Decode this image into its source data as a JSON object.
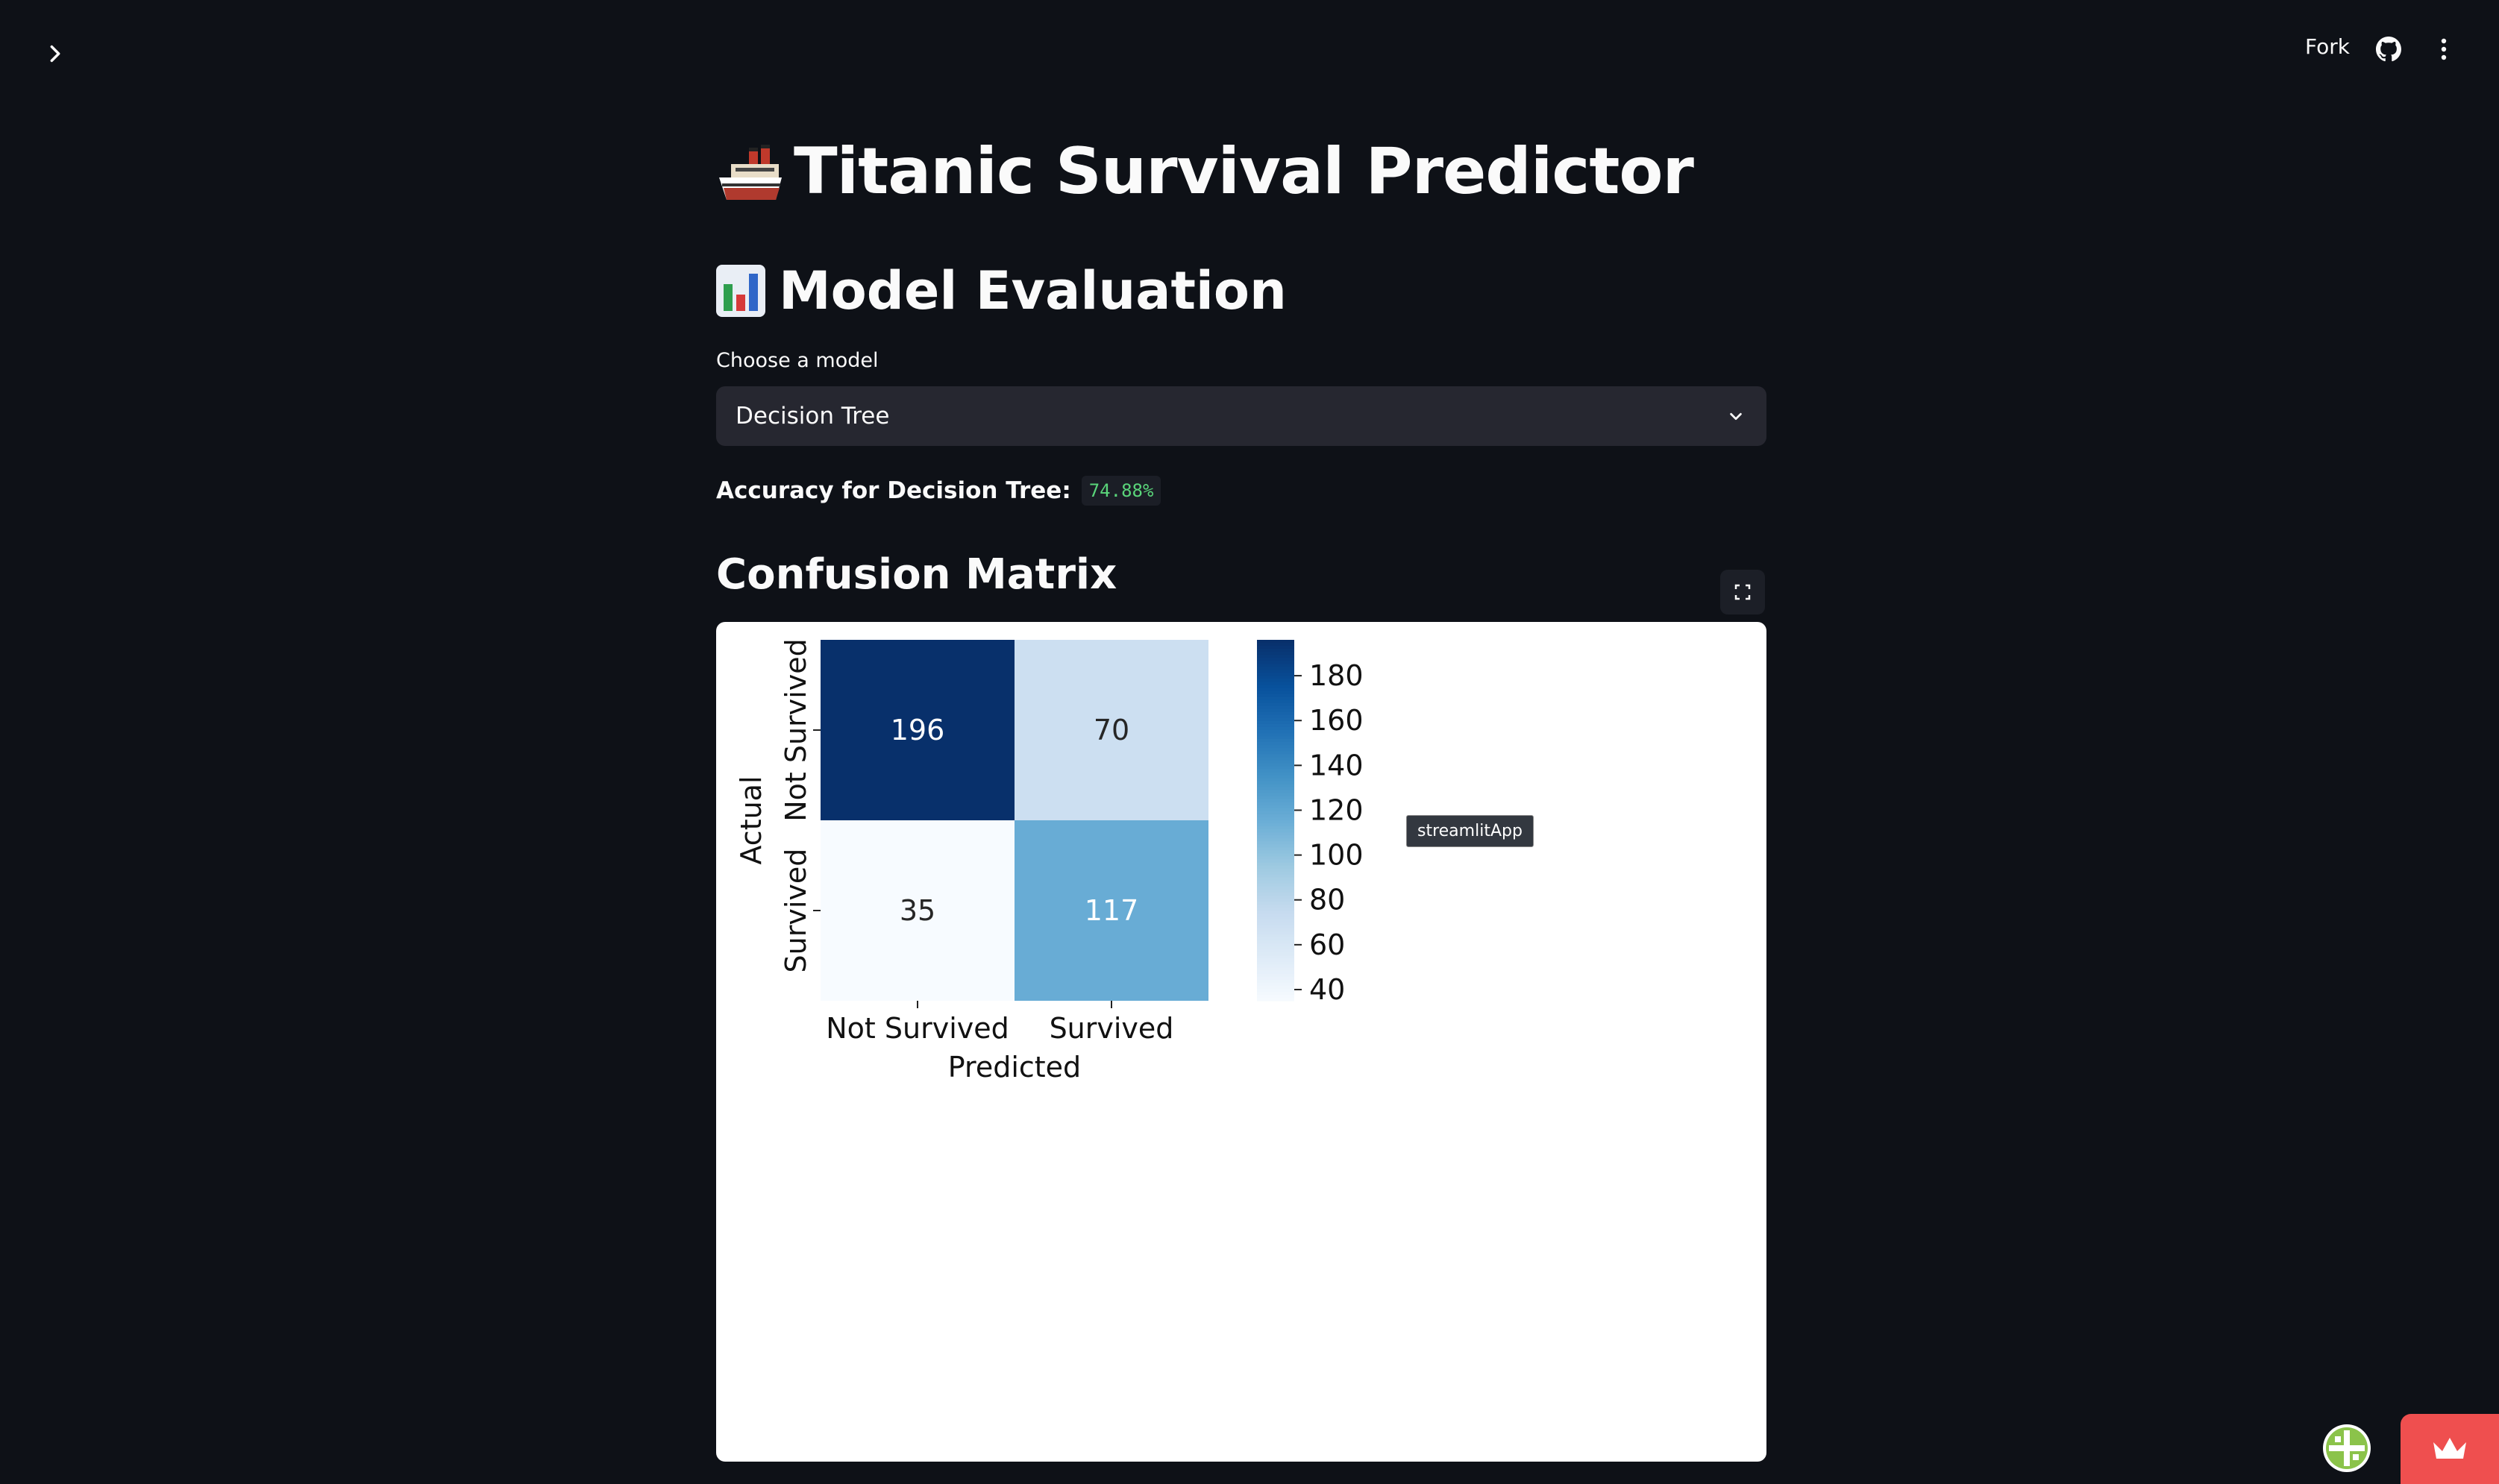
{
  "header": {
    "fork_label": "Fork"
  },
  "icons": {
    "sidebar_toggle": "chevron-right-icon",
    "github": "github-icon",
    "menu": "kebab-menu-icon",
    "fullscreen": "fullscreen-icon",
    "dropdown": "chevron-down-icon",
    "title_emoji": "ship-icon",
    "subtitle_emoji": "bar-chart-icon"
  },
  "main": {
    "title": "Titanic Survival Predictor",
    "subtitle": "Model Evaluation",
    "select_label": "Choose a model",
    "select_value": "Decision Tree",
    "accuracy_label": "Accuracy for Decision Tree:",
    "accuracy_value": "74.88%",
    "confusion_heading": "Confusion Matrix",
    "tooltip": "streamlitApp"
  },
  "colors": {
    "background": "#0e1117",
    "select_bg": "#262730",
    "accent_code": "#5ad57a",
    "crown_button": "#ef4f4f"
  },
  "chart_data": {
    "type": "heatmap",
    "x_categories": [
      "Not Survived",
      "Survived"
    ],
    "y_categories": [
      "Not Survived",
      "Survived"
    ],
    "values": [
      [
        196,
        70
      ],
      [
        35,
        117
      ]
    ],
    "xlabel": "Predicted",
    "ylabel": "Actual",
    "colormap": "Blues",
    "colorbar": {
      "min": 35,
      "max": 196,
      "ticks": [
        40,
        60,
        80,
        100,
        120,
        140,
        160,
        180
      ]
    }
  }
}
